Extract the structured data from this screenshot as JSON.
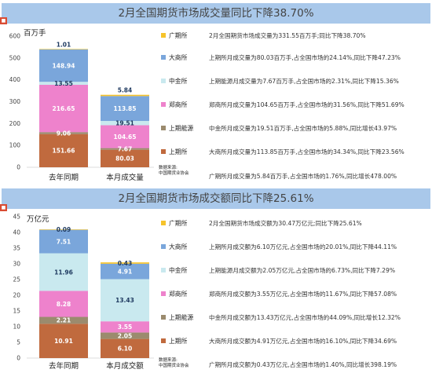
{
  "charts": [
    {
      "title": "2月全国期货市场成交量同比下降38.70%",
      "unit": "百万手",
      "source_label": "数据来源:",
      "source_name": "中国期货业协会",
      "legend": [
        {
          "name": "广期所",
          "desc": "2月全国期货市场成交量为331.55百万手;同比下降38.70%",
          "color": "#f6c32b"
        },
        {
          "name": "大商所",
          "desc": "上期所月成交量为80.03百万手,占全国市场的24.14%,同比下降47.23%",
          "color": "#7aa6db"
        },
        {
          "name": "中金所",
          "desc": "上期能源月成交量为7.67百万手,占全国市场的2.31%,同比下降15.36%",
          "color": "#c9e9ef"
        },
        {
          "name": "郑商所",
          "desc": "郑商所月成交量为104.65百万手,占全国市场的31.56%,同比下降51.69%",
          "color": "#ee82cc"
        },
        {
          "name": "上期能源",
          "desc": "中金所月成交量为19.51百万手,占全国市场的5.88%,同比增长43.97%",
          "color": "#9b8b6e"
        },
        {
          "name": "上期所",
          "desc": "大商所月成交量为113.85百万手,占全国市场的34.34%,同比下降23.56%",
          "color": "#c06a3e"
        },
        {
          "name": "",
          "desc": "广期所月成交量为5.84百万手,占全国市场的1.76%,同比增长478.00%",
          "color": ""
        }
      ]
    },
    {
      "title": "2月全国期货市场成交额同比下降25.61%",
      "unit": "万亿元",
      "source_label": "数据来源:",
      "source_name": "中国期货业协会",
      "legend": [
        {
          "name": "广期所",
          "desc": "2月全国期货市场成交额为30.47万亿元;同比下降25.61%",
          "color": "#f6c32b"
        },
        {
          "name": "大商所",
          "desc": "上期所月成交额为6.10万亿元,占全国市场的20.01%,同比下降44.11%",
          "color": "#7aa6db"
        },
        {
          "name": "中金所",
          "desc": "上期能源月成交额为2.05万亿元,占全国市场的6.73%,同比下降7.29%",
          "color": "#c9e9ef"
        },
        {
          "name": "郑商所",
          "desc": "郑商所月成交额为3.55万亿元,占全国市场的11.67%,同比下降57.08%",
          "color": "#ee82cc"
        },
        {
          "name": "上期能源",
          "desc": "中金所月成交额为13.43万亿元,占全国市场的44.09%,同比增长12.32%",
          "color": "#9b8b6e"
        },
        {
          "name": "上期所",
          "desc": "大商所月成交额为4.91万亿元,占全国市场的16.10%,同比下降34.69%",
          "color": "#c06a3e"
        },
        {
          "name": "",
          "desc": "广期所月成交额为0.43万亿元,占全国市场的1.40%,同比增长398.19%",
          "color": ""
        }
      ]
    }
  ],
  "chart_data": [
    {
      "type": "bar",
      "stacked": true,
      "title": "2月全国期货市场成交量同比下降38.70%",
      "ylabel": "百万手",
      "ylim": [
        0,
        600
      ],
      "yticks": [
        0,
        100,
        200,
        300,
        400,
        500,
        600
      ],
      "categories": [
        "去年同期",
        "本月成交量"
      ],
      "series": [
        {
          "name": "上期所",
          "color": "#c06a3e",
          "values": [
            151.66,
            80.03
          ]
        },
        {
          "name": "上期能源",
          "color": "#9b8b6e",
          "values": [
            9.06,
            7.67
          ]
        },
        {
          "name": "郑商所",
          "color": "#ee82cc",
          "values": [
            216.65,
            104.65
          ]
        },
        {
          "name": "中金所",
          "color": "#c9e9ef",
          "values": [
            13.55,
            19.51
          ]
        },
        {
          "name": "大商所",
          "color": "#7aa6db",
          "values": [
            148.94,
            113.85
          ]
        },
        {
          "name": "广期所",
          "color": "#f6c32b",
          "values": [
            1.01,
            5.84
          ]
        }
      ],
      "labels_above": [
        "广期所"
      ],
      "grid": false
    },
    {
      "type": "bar",
      "stacked": true,
      "title": "2月全国期货市场成交额同比下降25.61%",
      "ylabel": "万亿元",
      "ylim": [
        0,
        45
      ],
      "yticks": [
        0,
        5,
        10,
        15,
        20,
        25,
        30,
        35,
        40,
        45
      ],
      "categories": [
        "去年同期",
        "本月成交额"
      ],
      "series": [
        {
          "name": "上期所",
          "color": "#c06a3e",
          "values": [
            10.91,
            6.1
          ]
        },
        {
          "name": "上期能源",
          "color": "#9b8b6e",
          "values": [
            2.21,
            2.05
          ]
        },
        {
          "name": "郑商所",
          "color": "#ee82cc",
          "values": [
            8.28,
            3.55
          ]
        },
        {
          "name": "中金所",
          "color": "#c9e9ef",
          "values": [
            11.96,
            13.43
          ]
        },
        {
          "name": "大商所",
          "color": "#7aa6db",
          "values": [
            7.51,
            4.91
          ]
        },
        {
          "name": "广期所",
          "color": "#f6c32b",
          "values": [
            0.09,
            0.43
          ]
        }
      ],
      "labels_above": [],
      "grid": false
    }
  ]
}
